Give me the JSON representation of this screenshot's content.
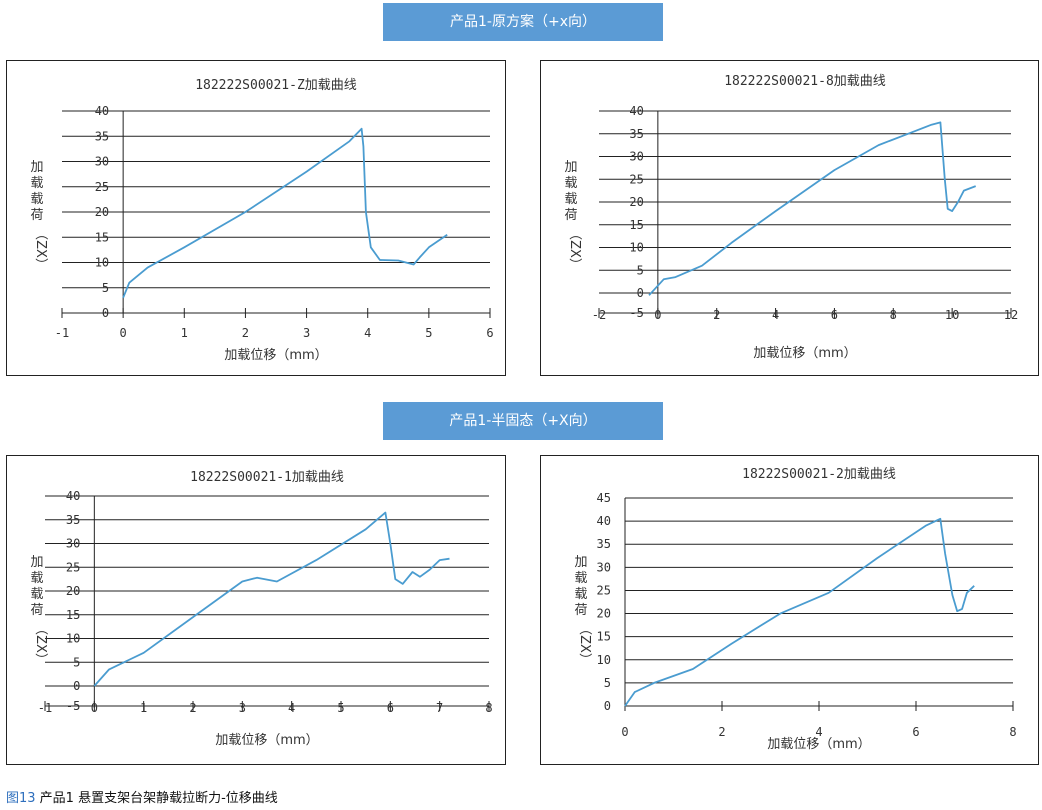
{
  "colors": {
    "banner": "#5b9bd5",
    "series": "#4a9cd0",
    "grid": "#222222",
    "caption_number": "#2e6fbd"
  },
  "banners": [
    "产品1-原方案（+x向）",
    "产品1-半固态（+X向）"
  ],
  "caption": {
    "number": "图13",
    "text": " 产品1 悬置支架台架静载拉断力-位移曲线"
  },
  "chart_data": [
    {
      "type": "line",
      "title": "182222S00021-Z加载曲线",
      "xlabel": "加载位移（mm）",
      "ylabel_chars": [
        "加",
        "载",
        "载",
        "荷"
      ],
      "ylabel_unit": "（ZX）",
      "xlim": [
        -1,
        6
      ],
      "ylim": [
        0,
        40
      ],
      "xticks": [
        -1,
        0,
        1,
        2,
        3,
        4,
        5,
        6
      ],
      "yticks": [
        0,
        5,
        10,
        15,
        20,
        25,
        30,
        35,
        40
      ],
      "x": [
        0,
        0.1,
        0.4,
        1.0,
        2.0,
        3.0,
        3.7,
        3.9,
        3.93,
        3.97,
        4.05,
        4.2,
        4.5,
        4.75,
        4.85,
        5.0,
        5.3
      ],
      "y": [
        3,
        6,
        9,
        13,
        20,
        28,
        34,
        36.5,
        33,
        20,
        13,
        10.5,
        10.4,
        9.6,
        11,
        13,
        15.5
      ]
    },
    {
      "type": "line",
      "title": "182222S00021-8加载曲线",
      "xlabel": "加载位移（mm）",
      "ylabel_chars": [
        "加",
        "载",
        "载",
        "荷"
      ],
      "ylabel_unit": "（ZX）",
      "xlim": [
        -2,
        12
      ],
      "ylim": [
        -5,
        40
      ],
      "xticks": [
        -2,
        0,
        2,
        4,
        6,
        8,
        10,
        12
      ],
      "yticks": [
        0,
        5,
        10,
        15,
        20,
        25,
        30,
        35,
        40
      ],
      "x": [
        -0.3,
        0.2,
        0.6,
        1.5,
        2.5,
        4.0,
        6.0,
        7.5,
        8.5,
        9.3,
        9.6,
        9.75,
        9.85,
        10.0,
        10.2,
        10.4,
        10.8
      ],
      "y": [
        -0.5,
        3,
        3.5,
        6,
        11,
        18,
        27,
        32.5,
        35,
        37,
        37.5,
        25,
        18.5,
        18,
        20,
        22.5,
        23.5
      ]
    },
    {
      "type": "line",
      "title": "18222S00021-1加载曲线",
      "xlabel": "加载位移（mm）",
      "ylabel_chars": [
        "加",
        "载",
        "载",
        "荷"
      ],
      "ylabel_unit": "（ZX）",
      "xlim": [
        -1,
        8
      ],
      "ylim": [
        -5,
        40
      ],
      "xticks": [
        -1,
        0,
        1,
        2,
        3,
        4,
        5,
        6,
        7,
        8
      ],
      "yticks": [
        0,
        5,
        10,
        15,
        20,
        25,
        30,
        35,
        40
      ],
      "x": [
        0,
        0.3,
        0.6,
        1.0,
        2.0,
        3.0,
        3.3,
        3.7,
        4.5,
        5.5,
        5.9,
        6.0,
        6.1,
        6.25,
        6.45,
        6.6,
        6.8,
        7.0,
        7.2
      ],
      "y": [
        0,
        3.5,
        5,
        7,
        14.5,
        22,
        22.8,
        22,
        26.5,
        33,
        36.5,
        30,
        22.5,
        21.5,
        24,
        23,
        24.5,
        26.5,
        26.8
      ]
    },
    {
      "type": "line",
      "title": "18222S00021-2加载曲线",
      "xlabel": "加载位移（mm）",
      "ylabel_chars": [
        "加",
        "载",
        "载",
        "荷"
      ],
      "ylabel_unit": "（ZX）",
      "xlim": [
        0,
        8
      ],
      "ylim": [
        0,
        45
      ],
      "xticks": [
        0,
        2,
        4,
        6,
        8
      ],
      "yticks": [
        0,
        5,
        10,
        15,
        20,
        25,
        30,
        35,
        40,
        45
      ],
      "x": [
        0,
        0.2,
        0.6,
        1.4,
        2.2,
        3.2,
        4.2,
        5.2,
        6.2,
        6.5,
        6.6,
        6.75,
        6.85,
        6.95,
        7.05,
        7.2
      ],
      "y": [
        0,
        3,
        5,
        8,
        13.5,
        20,
        24.5,
        32,
        39,
        40.5,
        33,
        24,
        20.5,
        21,
        24.5,
        26
      ]
    }
  ]
}
